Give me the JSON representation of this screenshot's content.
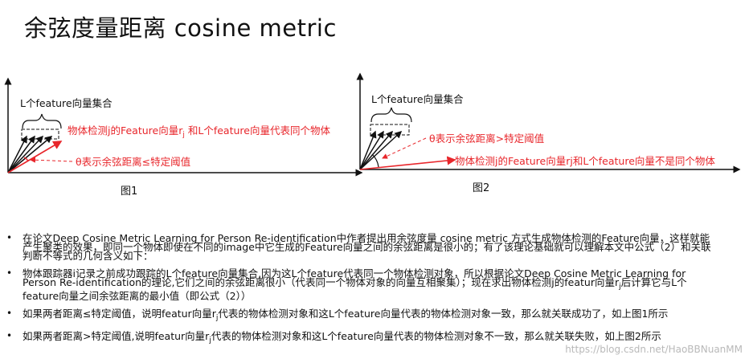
{
  "title": "余弦度量距离 cosine metric",
  "figure1": {
    "set_label": "L个feature向量集合",
    "detection_label_pre": "物体检测j的Feature向量r",
    "detection_label_sub": "j",
    "detection_label_post": " 和L个feature向量代表同个物体",
    "threshold_label": "θ表示余弦距离≤特定阈值",
    "caption": "图1"
  },
  "figure2": {
    "set_label": "L个feature向量集合",
    "threshold_label": "θ表示余弦距离>特定阈值",
    "detection_label": "物体检测j的Feature向量rj和L个feature向量不是同个物体",
    "caption": "图2"
  },
  "bullets": [
    {
      "text": "在论文Deep Cosine Metric Learning for Person Re-identification中作者提出用余弦度量 cosine metric 方式生成物体检测的Feature向量，这样就能产生聚类的效果，即同一个物体即使在不同的image中它生成的Feature向量之间的余弦距离是很小的；有了该理论基础就可以理解本文中公式（2）和关联判断不等式的几何含义如下："
    },
    {
      "text_pre": "物体跟踪器i记录之前成功跟踪的L个feature向量集合,因为这L个feature代表同一个物体检测对象，所以根据论文Deep Cosine Metric Learning for Person Re-identification的理论,它们之间的余弦距离很小（代表同一个物体对象的向量互相聚集）；现在求出物体检测j的featur向量r",
      "sub": "j",
      "text_post": "后计算它与L个feature向量之间余弦距离的最小值（即公式（2））"
    },
    {
      "text_pre": "如果两者距离≤特定阈值，说明featur向量r",
      "sub": "j",
      "text_post": "代表的物体检测对象和这L个feature向量代表的物体检测对象一致，那么就关联成功了，如上图1所示"
    },
    {
      "text_pre": "如果两者距离>特定阈值,说明featur向量r",
      "sub": "j",
      "text_post": "代表的物体检测对象和这L个feature向量代表的物体检测对象不一致，那么就关联失败，如上图2所示"
    }
  ],
  "watermark": "https://blog.csdn.net/HaoBBNuanMM",
  "colors": {
    "red": "#e8262b",
    "black": "#111111"
  }
}
